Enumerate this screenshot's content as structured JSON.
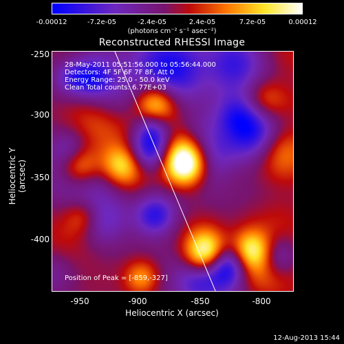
{
  "colorbar": {
    "ticks": [
      "-0.00012",
      "-7.2e-05",
      "-2.4e-05",
      "2.4e-05",
      "7.2e-05",
      "0.00012"
    ],
    "units": "(photons cm⁻² s⁻¹ asec⁻²)"
  },
  "title": "Reconstructed RHESSI Image",
  "annotations": {
    "time_range": "28-May-2011 05:51:56.000 to 05:56:44.000",
    "detectors": "Detectors: 4F 5F 6F 7F 8F, Att 0",
    "energy": "Energy Range: 25.0 - 50.0 keV",
    "clean": "Clean    Total counts: 6.77E+03",
    "peak": "Position of Peak = [-859,-327]"
  },
  "axes": {
    "xlabel": "Heliocentric X (arcsec)",
    "ylabel": "Heliocentric Y (arcsec)",
    "xticks": [
      "-950",
      "-900",
      "-850",
      "-800"
    ],
    "yticks": [
      "-250",
      "-300",
      "-350",
      "-400"
    ]
  },
  "footer": {
    "timestamp": "12-Aug-2013 15:44"
  }
}
